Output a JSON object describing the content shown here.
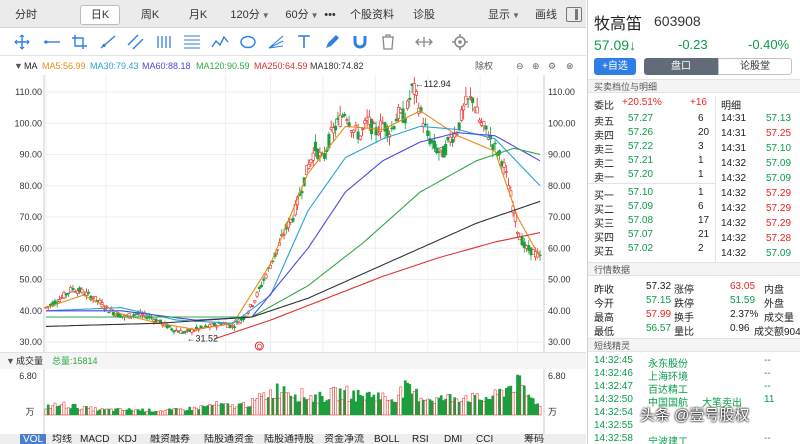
{
  "period_tabs": [
    "分时",
    "日K",
    "周K",
    "月K",
    "120分",
    "60分",
    "•••",
    "个股资料",
    "诊股",
    "显示",
    "画线"
  ],
  "active_period": "日K",
  "indicators_ma": {
    "label": "MA",
    "items": [
      {
        "text": "MA5:56.99",
        "color": "#e88a1a"
      },
      {
        "text": "MA30:79.43",
        "color": "#2aa3d6"
      },
      {
        "text": "MA60:88.18",
        "color": "#4a4adf"
      },
      {
        "text": "MA120:90.59",
        "color": "#2fa84a"
      },
      {
        "text": "MA250:64.59",
        "color": "#e03030"
      },
      {
        "text": "MA180:74.82",
        "color": "#333333"
      }
    ],
    "adjust": "除权"
  },
  "volume_indicator": {
    "label": "成交量",
    "total": "总量:15814"
  },
  "bottom_tabs": [
    "VOL",
    "均线",
    "MACD",
    "KDJ",
    "融资融券",
    "陆股通资金",
    "陆股通持股",
    "资金净流",
    "BOLL",
    "RSI",
    "DMI",
    "CCI",
    "筹码"
  ],
  "chart_data": {
    "type": "candlestick",
    "price_axis_ticks": [
      "110.00",
      "100.00",
      "90.00",
      "80.00",
      "70.00",
      "60.00",
      "50.00",
      "40.00",
      "30.00"
    ],
    "right_axis_ticks": [
      "110.00",
      "100.00",
      "90.00",
      "80.00",
      "70.00",
      "60.00",
      "50.00",
      "40.00",
      "30.00"
    ],
    "ylim": [
      30,
      110
    ],
    "x_ticks": [
      "2021/12",
      "02",
      "04",
      "05",
      "06",
      "07",
      "08",
      "09",
      "10"
    ],
    "high_annotation": "←112.94",
    "low_annotation": "←31.52",
    "marker_label": "Q",
    "volume_ticks": [
      "6.80",
      "万"
    ],
    "volume_right_ticks": [
      "6.80",
      "万"
    ],
    "price_path": [
      [
        0,
        41
      ],
      [
        4,
        44
      ],
      [
        7,
        47
      ],
      [
        10,
        46
      ],
      [
        14,
        43
      ],
      [
        17,
        40
      ],
      [
        21,
        38
      ],
      [
        24,
        39
      ],
      [
        28,
        38
      ],
      [
        31,
        36
      ],
      [
        34,
        34
      ],
      [
        37,
        33
      ],
      [
        40,
        34
      ],
      [
        44,
        35
      ],
      [
        47,
        36
      ],
      [
        50,
        35
      ],
      [
        53,
        38
      ],
      [
        56,
        44
      ],
      [
        59,
        52
      ],
      [
        62,
        60
      ],
      [
        64,
        66
      ],
      [
        66,
        70
      ],
      [
        68,
        78
      ],
      [
        70,
        86
      ],
      [
        72,
        92
      ],
      [
        74,
        88
      ],
      [
        76,
        96
      ],
      [
        78,
        100
      ],
      [
        80,
        104
      ],
      [
        82,
        98
      ],
      [
        84,
        96
      ],
      [
        86,
        101
      ],
      [
        88,
        97
      ],
      [
        90,
        100
      ],
      [
        92,
        97
      ],
      [
        94,
        103
      ],
      [
        96,
        102
      ],
      [
        98,
        112
      ],
      [
        100,
        104
      ],
      [
        102,
        96
      ],
      [
        104,
        92
      ],
      [
        106,
        90
      ],
      [
        108,
        95
      ],
      [
        110,
        98
      ],
      [
        112,
        106
      ],
      [
        114,
        108
      ],
      [
        116,
        100
      ],
      [
        118,
        97
      ],
      [
        120,
        92
      ],
      [
        122,
        88
      ],
      [
        124,
        78
      ],
      [
        126,
        66
      ],
      [
        128,
        60
      ],
      [
        130,
        59
      ],
      [
        132,
        57
      ]
    ],
    "ma_series": [
      {
        "name": "MA5",
        "color": "#e88a1a",
        "values": [
          [
            0,
            41
          ],
          [
            10,
            45
          ],
          [
            20,
            39
          ],
          [
            30,
            36
          ],
          [
            40,
            34
          ],
          [
            50,
            36
          ],
          [
            60,
            55
          ],
          [
            70,
            84
          ],
          [
            80,
            99
          ],
          [
            90,
            98
          ],
          [
            100,
            104
          ],
          [
            110,
            96
          ],
          [
            120,
            91
          ],
          [
            126,
            70
          ],
          [
            132,
            57
          ]
        ]
      },
      {
        "name": "MA30",
        "color": "#2aa3d6",
        "values": [
          [
            0,
            40
          ],
          [
            20,
            41
          ],
          [
            35,
            37
          ],
          [
            50,
            36
          ],
          [
            60,
            45
          ],
          [
            70,
            72
          ],
          [
            80,
            89
          ],
          [
            90,
            95
          ],
          [
            100,
            99
          ],
          [
            110,
            98
          ],
          [
            120,
            95
          ],
          [
            132,
            80
          ]
        ]
      },
      {
        "name": "MA60",
        "color": "#4a4adf",
        "values": [
          [
            0,
            40
          ],
          [
            20,
            40
          ],
          [
            40,
            37
          ],
          [
            55,
            38
          ],
          [
            70,
            60
          ],
          [
            80,
            78
          ],
          [
            90,
            88
          ],
          [
            100,
            94
          ],
          [
            110,
            97
          ],
          [
            120,
            96
          ],
          [
            132,
            88
          ]
        ]
      },
      {
        "name": "MA120",
        "color": "#2fa84a",
        "values": [
          [
            0,
            38
          ],
          [
            30,
            38
          ],
          [
            55,
            38
          ],
          [
            70,
            48
          ],
          [
            85,
            62
          ],
          [
            100,
            78
          ],
          [
            115,
            88
          ],
          [
            125,
            92
          ],
          [
            132,
            90
          ]
        ]
      },
      {
        "name": "MA180",
        "color": "#333333",
        "values": [
          [
            0,
            35
          ],
          [
            30,
            36
          ],
          [
            55,
            38
          ],
          [
            70,
            44
          ],
          [
            85,
            52
          ],
          [
            100,
            60
          ],
          [
            115,
            68
          ],
          [
            132,
            75
          ]
        ]
      },
      {
        "name": "MA250",
        "color": "#e03030",
        "values": [
          [
            45,
            31
          ],
          [
            60,
            37
          ],
          [
            75,
            44
          ],
          [
            90,
            51
          ],
          [
            105,
            57
          ],
          [
            120,
            62
          ],
          [
            132,
            65
          ]
        ]
      }
    ],
    "volume_profile": [
      [
        0,
        0.25
      ],
      [
        5,
        0.3
      ],
      [
        10,
        0.2
      ],
      [
        15,
        0.15
      ],
      [
        20,
        0.15
      ],
      [
        25,
        0.15
      ],
      [
        30,
        0.12
      ],
      [
        35,
        0.15
      ],
      [
        40,
        0.2
      ],
      [
        45,
        0.3
      ],
      [
        50,
        0.25
      ],
      [
        55,
        0.35
      ],
      [
        58,
        0.55
      ],
      [
        61,
        0.7
      ],
      [
        64,
        0.8
      ],
      [
        67,
        0.6
      ],
      [
        70,
        0.55
      ],
      [
        73,
        0.5
      ],
      [
        76,
        0.6
      ],
      [
        80,
        0.65
      ],
      [
        84,
        0.55
      ],
      [
        88,
        0.6
      ],
      [
        92,
        0.45
      ],
      [
        96,
        0.75
      ],
      [
        100,
        0.55
      ],
      [
        104,
        0.45
      ],
      [
        108,
        0.5
      ],
      [
        112,
        0.55
      ],
      [
        116,
        0.45
      ],
      [
        120,
        0.55
      ],
      [
        124,
        0.85
      ],
      [
        126,
        0.95
      ],
      [
        128,
        0.65
      ],
      [
        130,
        0.45
      ],
      [
        132,
        0.35
      ]
    ]
  },
  "stock": {
    "name": "牧高笛",
    "code": "603908",
    "price": "57.09↓",
    "change": "-0.23",
    "change_pct": "-0.40%"
  },
  "buttons": {
    "watchlist": "+自选",
    "handicap": "盘口",
    "forum": "论股堂"
  },
  "order_book_title": "买卖档位与明细",
  "webi": {
    "label": "委比",
    "value": "+20.51%",
    "diff": "+16",
    "detail_label": "明细"
  },
  "asks": [
    {
      "label": "卖五",
      "price": "57.27",
      "vol": "6"
    },
    {
      "label": "卖四",
      "price": "57.26",
      "vol": "20"
    },
    {
      "label": "卖三",
      "price": "57.22",
      "vol": "3"
    },
    {
      "label": "卖二",
      "price": "57.21",
      "vol": "1"
    },
    {
      "label": "卖一",
      "price": "57.20",
      "vol": "1"
    }
  ],
  "bids": [
    {
      "label": "买一",
      "price": "57.10",
      "vol": "1"
    },
    {
      "label": "买二",
      "price": "57.09",
      "vol": "6"
    },
    {
      "label": "买三",
      "price": "57.08",
      "vol": "17"
    },
    {
      "label": "买四",
      "price": "57.07",
      "vol": "21"
    },
    {
      "label": "买五",
      "price": "57.02",
      "vol": "2"
    }
  ],
  "ticks": [
    {
      "time": "14:31",
      "price": "57.13"
    },
    {
      "time": "14:31",
      "price": "57.25"
    },
    {
      "time": "14:31",
      "price": "57.10"
    },
    {
      "time": "14:32",
      "price": "57.09"
    },
    {
      "time": "14:32",
      "price": "57.09"
    },
    {
      "time": "14:32",
      "price": "57.29"
    },
    {
      "time": "14:32",
      "price": "57.29"
    },
    {
      "time": "14:32",
      "price": "57.29"
    },
    {
      "time": "14:32",
      "price": "57.28"
    },
    {
      "time": "14:32",
      "price": "57.09"
    }
  ],
  "quote_title": "行情数据",
  "quote": {
    "zuoshou": {
      "label": "昨收",
      "value": "57.32"
    },
    "zhangting": {
      "label": "涨停",
      "value": "63.05"
    },
    "neipan": {
      "label": "内盘"
    },
    "jinkai": {
      "label": "今开",
      "value": "57.15"
    },
    "dieting": {
      "label": "跌停",
      "value": "51.59"
    },
    "waipan": {
      "label": "外盘"
    },
    "zuigao": {
      "label": "最高",
      "value": "57.99"
    },
    "huanshou": {
      "label": "换手",
      "value": "2.37%"
    },
    "chengjiaoliang": {
      "label": "成交量"
    },
    "zuidi": {
      "label": "最低",
      "value": "56.57"
    },
    "liangbi": {
      "label": "量比",
      "value": "0.96"
    },
    "chengjiaoe": {
      "label": "成交额904"
    }
  },
  "news_title": "短线精灵",
  "news": [
    {
      "time": "14:32:45",
      "name": "永东股份",
      "tag": "",
      "val": "--"
    },
    {
      "time": "14:32:46",
      "name": "上海环境",
      "tag": "",
      "val": "--"
    },
    {
      "time": "14:32:47",
      "name": "百达精工",
      "tag": "",
      "val": "--"
    },
    {
      "time": "14:32:50",
      "name": "中国国航",
      "tag": "大笔卖出",
      "val": "11"
    },
    {
      "time": "14:32:54",
      "name": "",
      "tag": "",
      "val": ""
    },
    {
      "time": "14:32:55",
      "name": "",
      "tag": "",
      "val": ""
    },
    {
      "time": "14:32:58",
      "name": "宁波建工",
      "tag": "",
      "val": "--"
    }
  ],
  "watermark": "头条 @壹号股权"
}
